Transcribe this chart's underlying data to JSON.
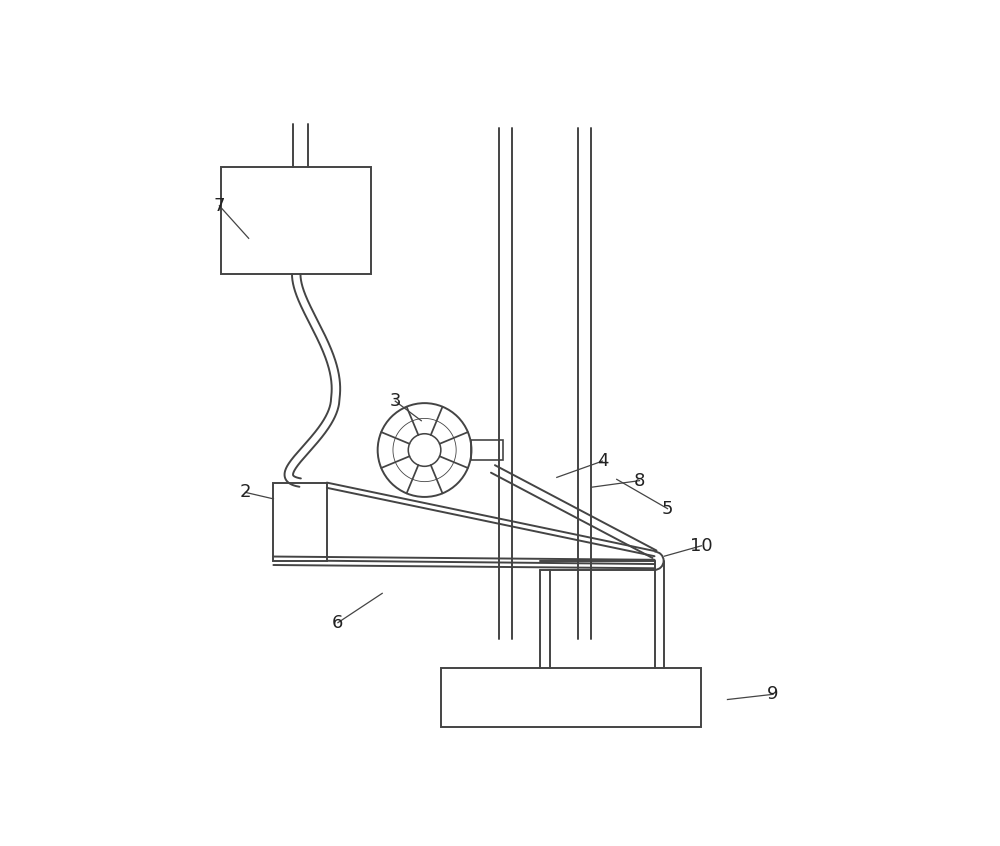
{
  "bg_color": "#ffffff",
  "line_color": "#444444",
  "lw": 1.4,
  "label_fontsize": 13,
  "fig_w": 10.0,
  "fig_h": 8.46,
  "dpi": 100
}
